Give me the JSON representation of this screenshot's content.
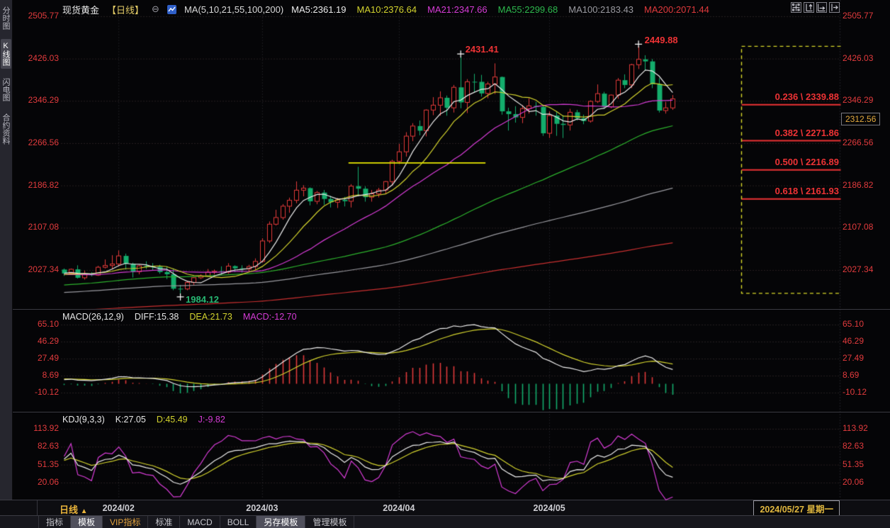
{
  "header": {
    "symbol": "现货黄金",
    "period": "【日线】",
    "collapse_glyph": "⊖",
    "ma_title": "MA(5,10,21,55,100,200)",
    "ma_values": [
      {
        "label": "MA5:2361.19",
        "color": "#ececec"
      },
      {
        "label": "MA10:2376.64",
        "color": "#d3d32e"
      },
      {
        "label": "MA21:2347.66",
        "color": "#d63cd6"
      },
      {
        "label": "MA55:2299.68",
        "color": "#2db84d"
      },
      {
        "label": "MA100:2183.43",
        "color": "#9a9aa0"
      },
      {
        "label": "MA200:2071.44",
        "color": "#e03a3c"
      }
    ]
  },
  "sidebar": {
    "items": [
      {
        "label": "分时图",
        "active": false
      },
      {
        "label": "K线图",
        "active": true
      },
      {
        "label": "闪电图",
        "active": false
      },
      {
        "label": "合约资料",
        "active": false
      }
    ]
  },
  "main_panel": {
    "y_labels": [
      "2505.77",
      "2426.03",
      "2346.29",
      "2266.56",
      "2186.82",
      "2107.08",
      "2027.34"
    ],
    "price_tag": "2312.56",
    "fib_levels": [
      {
        "label": "0.236 \\ 2339.88",
        "price": 2339.88
      },
      {
        "label": "0.382 \\ 2271.86",
        "price": 2271.86
      },
      {
        "label": "0.500 \\ 2216.89",
        "price": 2216.89
      },
      {
        "label": "0.618 \\ 2161.93",
        "price": 2161.93
      }
    ],
    "annotations": {
      "high1": {
        "text": "2431.41"
      },
      "high2": {
        "text": "2449.88"
      },
      "low": {
        "text": "1984.12"
      }
    }
  },
  "macd_panel": {
    "title": "MACD(26,12,9)",
    "diff": "DIFF:15.38",
    "dea": "DEA:21.73",
    "macd": "MACD:-12.70",
    "y_labels": [
      "65.10",
      "46.29",
      "27.49",
      "8.69",
      "-10.12"
    ]
  },
  "kdj_panel": {
    "title": "KDJ(9,3,3)",
    "k": "K:27.05",
    "d": "D:45.49",
    "j": "J:-9.82",
    "y_labels": [
      "113.92",
      "82.63",
      "51.35",
      "20.06"
    ]
  },
  "bottom_bar": {
    "period_label": "日线",
    "period_arrow": "▲",
    "months": [
      "2024/02",
      "2024/03",
      "2024/04",
      "2024/05"
    ],
    "current_date": "2024/05/27 星期一"
  },
  "tabs": [
    {
      "label": "指标"
    },
    {
      "label": "模板",
      "active": true
    },
    {
      "label": "VIP指标",
      "vip": true
    },
    {
      "label": "标准"
    },
    {
      "label": "MACD"
    },
    {
      "label": "BOLL"
    },
    {
      "label": "另存模板",
      "active": true
    },
    {
      "label": "管理模板"
    }
  ],
  "chart_data": {
    "type": "candlestick",
    "symbol": "现货黄金",
    "interval": "daily",
    "month_tick_indices": [
      8,
      29,
      49,
      71
    ],
    "low_annotation": {
      "index": 17,
      "date": "02/14",
      "price": 1984.12
    },
    "high_annotations": [
      {
        "index": 58,
        "date": "04/12",
        "price": 2431.41
      },
      {
        "index": 84,
        "date": "05/20",
        "price": 2449.88
      }
    ],
    "fibonacci": {
      "low": 1984.12,
      "high": 2449.88,
      "levels": [
        {
          "ratio": 0.236,
          "price": 2339.88
        },
        {
          "ratio": 0.382,
          "price": 2271.86
        },
        {
          "ratio": 0.5,
          "price": 2216.89
        },
        {
          "ratio": 0.618,
          "price": 2161.93
        }
      ]
    },
    "trendline": {
      "price": 2230,
      "from_index": 42,
      "to_index": 61
    },
    "axis": {
      "price_ticks": [
        2505.77,
        2426.03,
        2346.29,
        2266.56,
        2186.82,
        2107.08,
        2027.34
      ],
      "macd_ticks": [
        65.1,
        46.29,
        27.49,
        8.69,
        -10.12
      ],
      "kdj_ticks": [
        113.92,
        82.63,
        51.35,
        20.06
      ]
    },
    "colors": {
      "up": "#e23b3b",
      "down": "#14ad6c",
      "ma5": "#ececec",
      "ma10": "#d3d32e",
      "ma21": "#d63cd6",
      "ma55": "#2db22d",
      "ma100": "#9a9aa0",
      "ma200": "#c93030",
      "diff": "#ececec",
      "dea": "#d3d32e",
      "k": "#ececec",
      "d": "#d3d32e",
      "j": "#d63cd6",
      "axis_text": "#e23b3d",
      "fib": "#ee3335",
      "fib_tool": "#d8d828"
    },
    "ohlc": [
      [
        "01/22",
        2029.0,
        2031.0,
        2017.0,
        2021.6
      ],
      [
        "01/23",
        2021.6,
        2031.0,
        2019.0,
        2029.4
      ],
      [
        "01/24",
        2029.4,
        2037.0,
        2012.0,
        2013.5
      ],
      [
        "01/25",
        2013.5,
        2027.0,
        2010.0,
        2020.5
      ],
      [
        "01/26",
        2020.5,
        2024.0,
        2016.0,
        2018.5
      ],
      [
        "01/29",
        2018.5,
        2036.0,
        2017.0,
        2033.3
      ],
      [
        "01/30",
        2033.3,
        2048.0,
        2031.0,
        2036.6
      ],
      [
        "01/31",
        2036.6,
        2056.0,
        2030.0,
        2039.5
      ],
      [
        "02/01",
        2039.5,
        2065.0,
        2035.0,
        2054.7
      ],
      [
        "02/02",
        2054.7,
        2059.0,
        2029.0,
        2039.8
      ],
      [
        "02/05",
        2039.8,
        2042.0,
        2014.0,
        2025.0
      ],
      [
        "02/06",
        2025.0,
        2038.0,
        2020.0,
        2035.9
      ],
      [
        "02/07",
        2035.9,
        2044.5,
        2030.0,
        2034.4
      ],
      [
        "02/08",
        2034.4,
        2041.0,
        2027.0,
        2034.2
      ],
      [
        "02/09",
        2034.2,
        2038.0,
        2021.0,
        2024.3
      ],
      [
        "02/12",
        2024.3,
        2035.0,
        2011.0,
        2020.1
      ],
      [
        "02/13",
        2020.1,
        2031.0,
        1990.0,
        1992.9
      ],
      [
        "02/14",
        1992.9,
        2000.0,
        1984.12,
        1992.4
      ],
      [
        "02/15",
        1992.4,
        2008.0,
        1990.0,
        2004.6
      ],
      [
        "02/16",
        2004.6,
        2015.0,
        2000.0,
        2013.6
      ],
      [
        "02/19",
        2013.6,
        2020.0,
        2011.0,
        2017.2
      ],
      [
        "02/20",
        2017.2,
        2030.0,
        2015.0,
        2024.0
      ],
      [
        "02/21",
        2024.0,
        2029.0,
        2020.0,
        2025.7
      ],
      [
        "02/22",
        2025.7,
        2035.0,
        2019.0,
        2024.1
      ],
      [
        "02/23",
        2024.1,
        2041.0,
        2021.0,
        2035.4
      ],
      [
        "02/26",
        2035.4,
        2037.0,
        2024.0,
        2031.3
      ],
      [
        "02/27",
        2031.3,
        2037.0,
        2023.0,
        2029.9
      ],
      [
        "02/28",
        2029.9,
        2038.0,
        2025.0,
        2034.6
      ],
      [
        "02/29",
        2034.6,
        2050.0,
        2028.0,
        2044.3
      ],
      [
        "03/01",
        2044.3,
        2088.0,
        2042.0,
        2082.9
      ],
      [
        "03/04",
        2082.9,
        2119.7,
        2079.0,
        2114.5
      ],
      [
        "03/05",
        2114.5,
        2141.6,
        2112.0,
        2127.0
      ],
      [
        "03/06",
        2127.0,
        2152.4,
        2123.0,
        2148.4
      ],
      [
        "03/07",
        2148.4,
        2164.6,
        2136.0,
        2159.5
      ],
      [
        "03/08",
        2159.5,
        2195.2,
        2154.0,
        2178.6
      ],
      [
        "03/11",
        2178.6,
        2188.0,
        2167.0,
        2182.5
      ],
      [
        "03/12",
        2182.5,
        2184.0,
        2150.0,
        2157.6
      ],
      [
        "03/13",
        2157.6,
        2177.0,
        2152.0,
        2174.1
      ],
      [
        "03/14",
        2174.1,
        2179.0,
        2151.0,
        2162.1
      ],
      [
        "03/15",
        2162.1,
        2168.0,
        2146.0,
        2155.9
      ],
      [
        "03/18",
        2155.9,
        2164.0,
        2145.0,
        2160.3
      ],
      [
        "03/19",
        2160.3,
        2166.0,
        2148.0,
        2157.8
      ],
      [
        "03/20",
        2157.8,
        2190.0,
        2146.0,
        2186.2
      ],
      [
        "03/21",
        2186.2,
        2222.7,
        2167.0,
        2181.4
      ],
      [
        "03/22",
        2181.4,
        2186.0,
        2157.0,
        2165.4
      ],
      [
        "03/25",
        2165.4,
        2179.0,
        2157.0,
        2171.7
      ],
      [
        "03/26",
        2171.7,
        2183.0,
        2165.0,
        2178.9
      ],
      [
        "03/27",
        2178.9,
        2196.0,
        2171.0,
        2194.8
      ],
      [
        "03/28",
        2194.8,
        2236.0,
        2187.0,
        2233.0
      ],
      [
        "04/01",
        2233.0,
        2266.0,
        2228.0,
        2251.0
      ],
      [
        "04/02",
        2251.0,
        2288.0,
        2242.0,
        2280.5
      ],
      [
        "04/03",
        2280.5,
        2305.0,
        2271.0,
        2299.5
      ],
      [
        "04/04",
        2299.5,
        2310.0,
        2282.0,
        2290.8
      ],
      [
        "04/05",
        2290.8,
        2331.0,
        2280.0,
        2329.7
      ],
      [
        "04/08",
        2329.7,
        2354.0,
        2320.0,
        2338.9
      ],
      [
        "04/09",
        2338.9,
        2365.0,
        2319.0,
        2352.8
      ],
      [
        "04/10",
        2352.8,
        2357.0,
        2319.0,
        2333.9
      ],
      [
        "04/11",
        2333.9,
        2377.0,
        2325.0,
        2372.5
      ],
      [
        "04/12",
        2372.5,
        2431.41,
        2333.0,
        2344.2
      ],
      [
        "04/15",
        2344.2,
        2388.0,
        2324.0,
        2383.0
      ],
      [
        "04/16",
        2383.0,
        2398.0,
        2363.0,
        2382.9
      ],
      [
        "04/17",
        2382.9,
        2396.0,
        2355.0,
        2361.0
      ],
      [
        "04/18",
        2361.0,
        2383.0,
        2352.0,
        2378.8
      ],
      [
        "04/19",
        2378.8,
        2417.7,
        2360.0,
        2392.0
      ],
      [
        "04/22",
        2392.0,
        2393.0,
        2321.0,
        2327.3
      ],
      [
        "04/23",
        2327.3,
        2334.0,
        2291.0,
        2322.1
      ],
      [
        "04/24",
        2322.1,
        2337.0,
        2306.0,
        2315.9
      ],
      [
        "04/25",
        2315.9,
        2339.0,
        2305.0,
        2332.4
      ],
      [
        "04/26",
        2332.4,
        2352.0,
        2323.0,
        2337.5
      ],
      [
        "04/29",
        2337.5,
        2345.0,
        2319.0,
        2335.5
      ],
      [
        "04/30",
        2335.5,
        2339.0,
        2281.0,
        2285.9
      ],
      [
        "05/01",
        2285.9,
        2327.0,
        2277.0,
        2319.3
      ],
      [
        "05/02",
        2319.3,
        2326.0,
        2281.0,
        2303.7
      ],
      [
        "05/03",
        2303.7,
        2320.0,
        2277.0,
        2301.7
      ],
      [
        "05/06",
        2301.7,
        2332.0,
        2291.0,
        2325.5
      ],
      [
        "05/07",
        2325.5,
        2330.0,
        2310.0,
        2314.2
      ],
      [
        "05/08",
        2314.2,
        2321.0,
        2303.0,
        2308.9
      ],
      [
        "05/09",
        2308.9,
        2348.0,
        2306.0,
        2346.0
      ],
      [
        "05/10",
        2346.0,
        2378.0,
        2343.0,
        2360.6
      ],
      [
        "05/13",
        2360.6,
        2364.0,
        2332.0,
        2336.1
      ],
      [
        "05/14",
        2336.1,
        2359.0,
        2333.0,
        2357.9
      ],
      [
        "05/15",
        2357.9,
        2390.0,
        2351.0,
        2386.0
      ],
      [
        "05/16",
        2386.0,
        2397.0,
        2371.0,
        2377.0
      ],
      [
        "05/17",
        2377.0,
        2417.0,
        2371.0,
        2415.2
      ],
      [
        "05/20",
        2415.2,
        2449.88,
        2407.0,
        2425.3
      ],
      [
        "05/21",
        2425.3,
        2433.0,
        2404.0,
        2421.4
      ],
      [
        "05/22",
        2421.4,
        2426.0,
        2371.0,
        2378.5
      ],
      [
        "05/23",
        2378.5,
        2390.0,
        2325.0,
        2328.8
      ],
      [
        "05/24",
        2328.8,
        2345.0,
        2323.0,
        2333.8
      ],
      [
        "05/27",
        2333.8,
        2358.0,
        2330.0,
        2350.8
      ]
    ]
  }
}
